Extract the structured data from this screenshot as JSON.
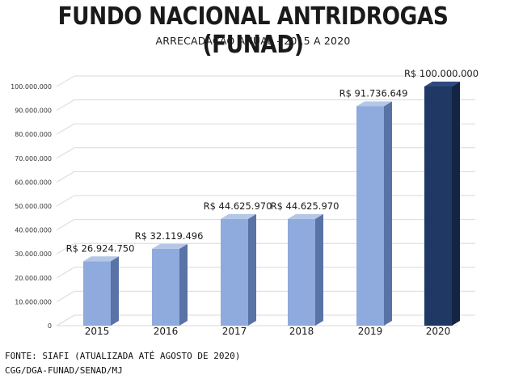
{
  "chart_data": {
    "type": "bar",
    "title": "FUNDO NACIONAL ANTRIDROGAS (FUNAD)",
    "subtitle": "ARRECADAÇÃO ANUAL - 2015 A 2020",
    "categories": [
      "2015",
      "2016",
      "2017",
      "2018",
      "2019",
      "2020"
    ],
    "values": [
      26924750,
      32119496,
      44625970,
      44625970,
      91736649,
      100000000
    ],
    "data_labels": [
      "R$ 26.924.750",
      "R$ 32.119.496",
      "R$ 44.625.970",
      "R$ 44.625.970",
      "R$ 91.736.649",
      "R$ 100.000.000"
    ],
    "y_tick_values": [
      0,
      10000000,
      20000000,
      30000000,
      40000000,
      50000000,
      60000000,
      70000000,
      80000000,
      90000000,
      100000000
    ],
    "y_tick_labels": [
      "0",
      "10.000.000",
      "20.000.000",
      "30.000.000",
      "40.000.000",
      "50.000.000",
      "60.000.000",
      "70.000.000",
      "80.000.000",
      "90.000.000",
      "100.000.000"
    ],
    "ylim": [
      0,
      100000000
    ],
    "grid": true,
    "style_3d": true,
    "colors": {
      "bar": "#8faadc",
      "bar_side": "#5a73a6",
      "bar_top": "#b4c7e7",
      "highlight_bar": "#1f3864",
      "highlight_side": "#142544",
      "highlight_top": "#2c4a80",
      "grid": "#d9d9d9"
    },
    "highlight_index": 5
  },
  "footer": {
    "line1": "FONTE: SIAFI (ATUALIZADA ATÉ AGOSTO DE 2020)",
    "line2": "CGG/DGA-FUNAD/SENAD/MJ"
  }
}
